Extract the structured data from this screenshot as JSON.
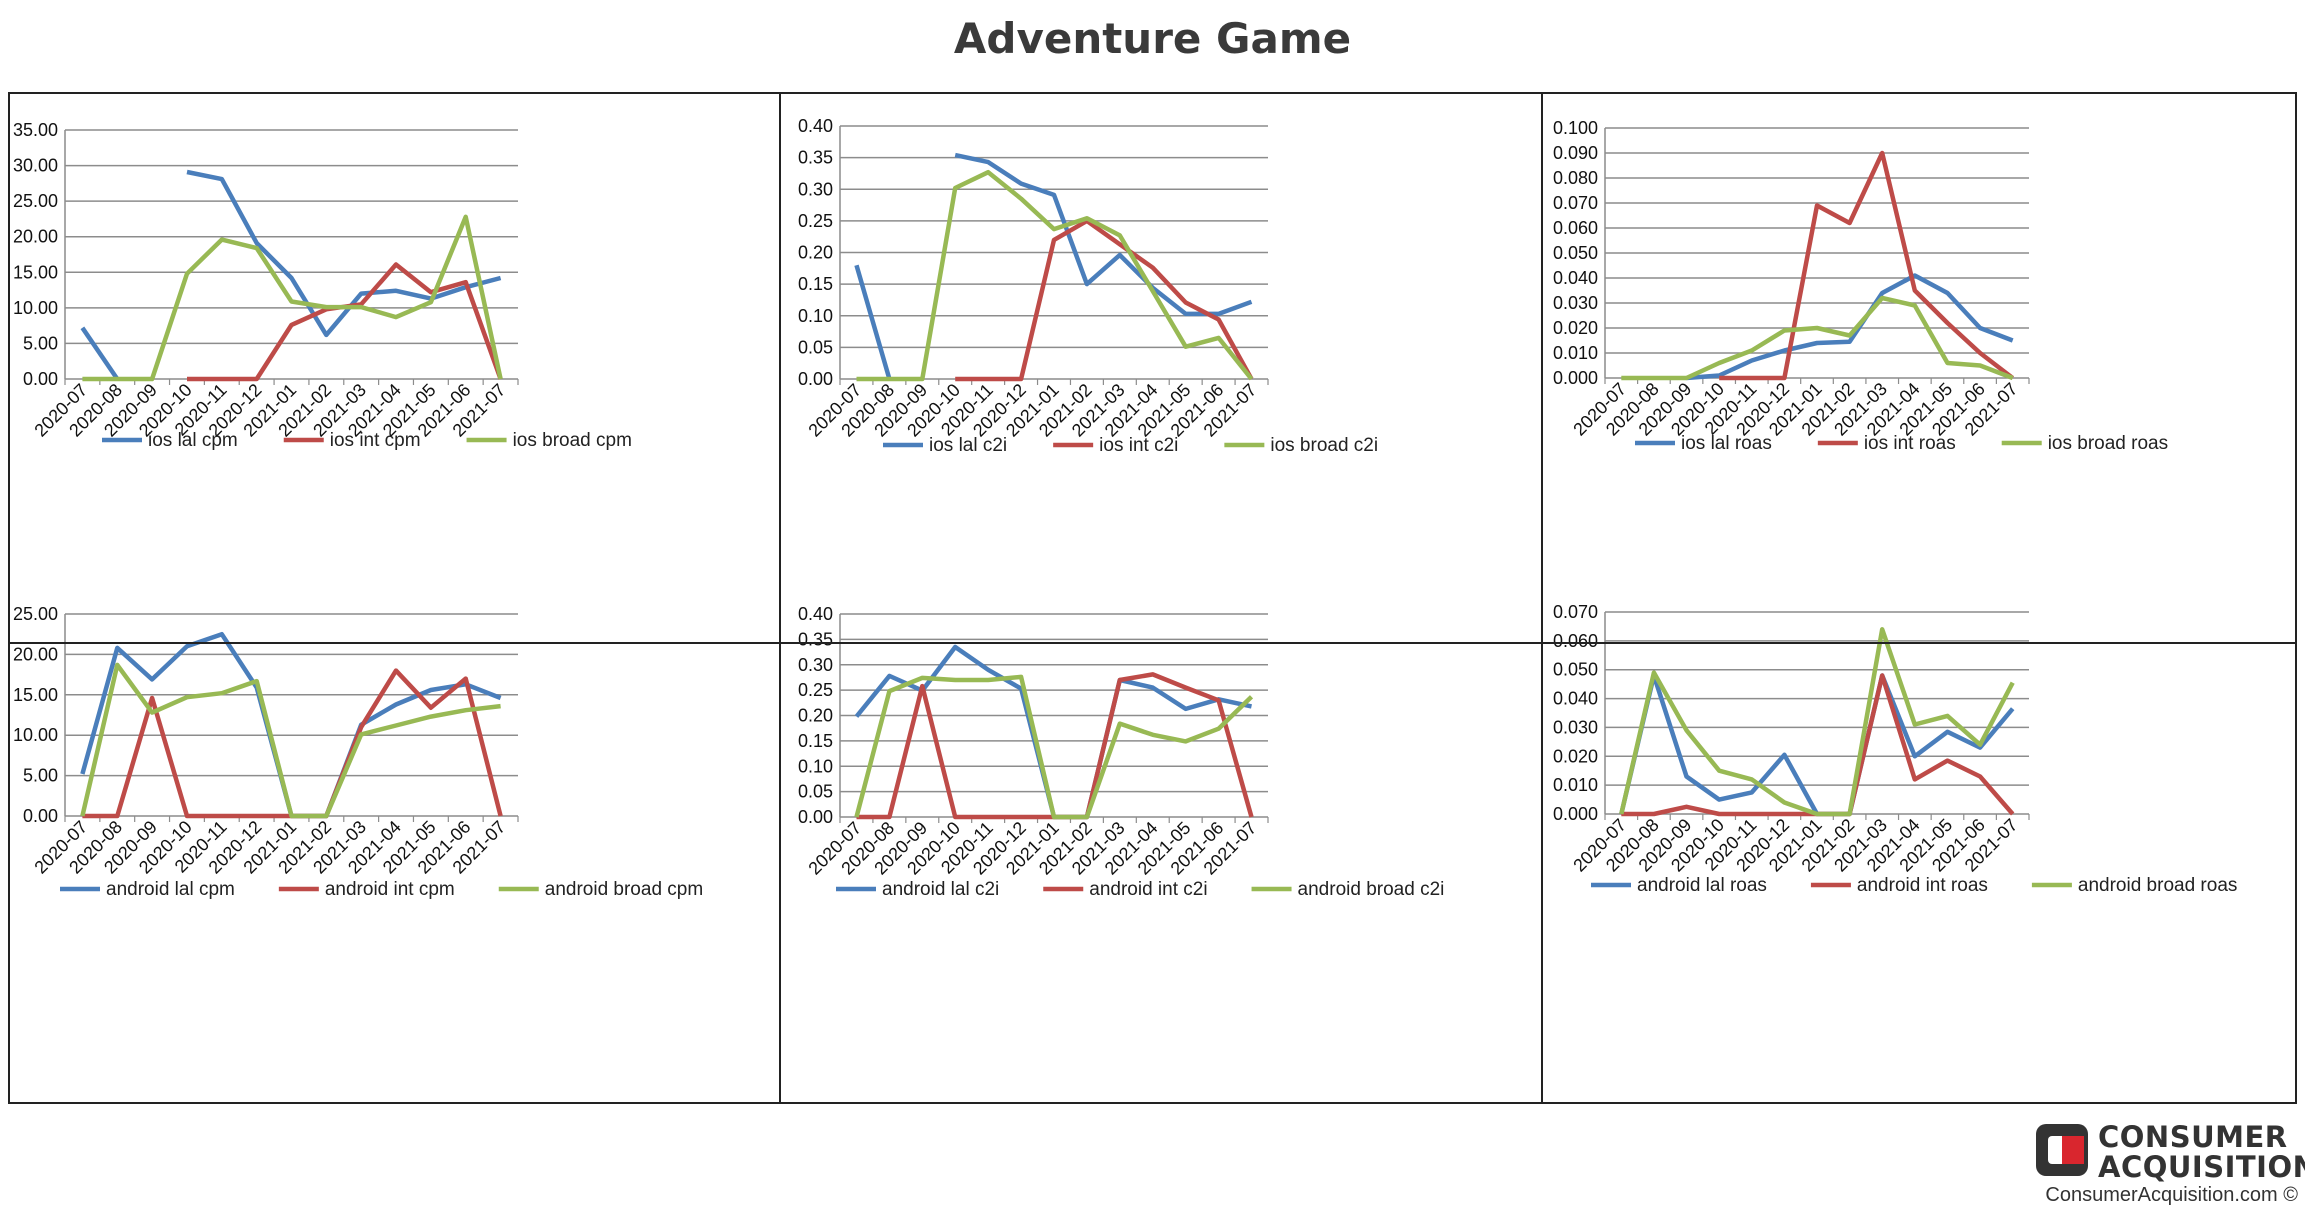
{
  "title": "Adventure Game",
  "brand": {
    "line1": "CONSUMER",
    "line2": "ACQUISITION",
    "url": "ConsumerAcquisition.com ©",
    "logo_icon": "consumer-acquisition-logo-icon",
    "logo_colors": [
      "#333333",
      "#d9262e"
    ]
  },
  "colors": {
    "blue": "#4a7ebb",
    "red": "#be4b48",
    "green": "#98b954"
  },
  "chart_data": [
    {
      "type": "line",
      "categories": [
        "2020-07",
        "2020-08",
        "2020-09",
        "2020-10",
        "2020-11",
        "2020-12",
        "2021-01",
        "2021-02",
        "2021-03",
        "2021-04",
        "2021-05",
        "2021-06",
        "2021-07"
      ],
      "ylim": [
        0,
        35
      ],
      "ytick_step": 5,
      "ytick_decimals": 2,
      "grid": true,
      "legend": "bottom",
      "series": [
        {
          "name": "ios lal cpm",
          "color": "#4a7ebb",
          "values": [
            7.2,
            0,
            null,
            29.1,
            28.1,
            19.1,
            14.2,
            6.2,
            12.0,
            12.4,
            11.3,
            12.9,
            14.2
          ]
        },
        {
          "name": "ios int cpm",
          "color": "#be4b48",
          "values": [
            null,
            null,
            null,
            0,
            0,
            0,
            7.6,
            9.8,
            10.5,
            16.1,
            12.2,
            13.6,
            0
          ]
        },
        {
          "name": "ios broad cpm",
          "color": "#98b954",
          "values": [
            0,
            0,
            0,
            14.8,
            19.6,
            18.4,
            10.9,
            10.1,
            10.1,
            8.7,
            10.8,
            22.8,
            0
          ]
        }
      ]
    },
    {
      "type": "line",
      "categories": [
        "2020-07",
        "2020-08",
        "2020-09",
        "2020-10",
        "2020-11",
        "2020-12",
        "2021-01",
        "2021-02",
        "2021-03",
        "2021-04",
        "2021-05",
        "2021-06",
        "2021-07"
      ],
      "ylim": [
        0,
        0.4
      ],
      "ytick_step": 0.05,
      "ytick_decimals": 2,
      "grid": true,
      "legend": "bottom",
      "series": [
        {
          "name": "ios lal c2i",
          "color": "#4a7ebb",
          "values": [
            0.18,
            0,
            null,
            0.354,
            0.343,
            0.309,
            0.291,
            0.15,
            0.196,
            0.144,
            0.103,
            0.103,
            0.122
          ]
        },
        {
          "name": "ios int c2i",
          "color": "#be4b48",
          "values": [
            null,
            null,
            null,
            0,
            0,
            0,
            0.22,
            0.25,
            0.213,
            0.176,
            0.121,
            0.094,
            0
          ]
        },
        {
          "name": "ios broad c2i",
          "color": "#98b954",
          "values": [
            0,
            0,
            0,
            0.302,
            0.327,
            0.285,
            0.237,
            0.254,
            0.227,
            0.139,
            0.051,
            0.065,
            0
          ]
        }
      ]
    },
    {
      "type": "line",
      "categories": [
        "2020-07",
        "2020-08",
        "2020-09",
        "2020-10",
        "2020-11",
        "2020-12",
        "2021-01",
        "2021-02",
        "2021-03",
        "2021-04",
        "2021-05",
        "2021-06",
        "2021-07"
      ],
      "ylim": [
        0,
        0.1
      ],
      "ytick_step": 0.01,
      "ytick_decimals": 3,
      "grid": true,
      "legend": "bottom",
      "series": [
        {
          "name": "ios lal roas",
          "color": "#4a7ebb",
          "values": [
            null,
            null,
            0,
            0.001,
            0.007,
            0.011,
            0.014,
            0.0145,
            0.034,
            0.041,
            0.034,
            0.02,
            0.015
          ]
        },
        {
          "name": "ios int roas",
          "color": "#be4b48",
          "values": [
            null,
            null,
            null,
            0,
            0,
            0,
            0.069,
            0.062,
            0.09,
            0.035,
            0.022,
            0.01,
            0
          ]
        },
        {
          "name": "ios broad roas",
          "color": "#98b954",
          "values": [
            0,
            0,
            0,
            0.006,
            0.011,
            0.019,
            0.02,
            0.017,
            0.032,
            0.029,
            0.006,
            0.005,
            0
          ]
        }
      ]
    },
    {
      "type": "line",
      "categories": [
        "2020-07",
        "2020-08",
        "2020-09",
        "2020-10",
        "2020-11",
        "2020-12",
        "2021-01",
        "2021-02",
        "2021-03",
        "2021-04",
        "2021-05",
        "2021-06",
        "2021-07"
      ],
      "ylim": [
        0,
        25
      ],
      "ytick_step": 5,
      "ytick_decimals": 2,
      "grid": true,
      "legend": "bottom",
      "series": [
        {
          "name": "android lal cpm",
          "color": "#4a7ebb",
          "values": [
            5.2,
            20.8,
            16.9,
            21.0,
            22.5,
            15.9,
            0,
            0,
            11.3,
            13.8,
            15.6,
            16.3,
            14.6
          ]
        },
        {
          "name": "android int cpm",
          "color": "#be4b48",
          "values": [
            0,
            0,
            14.6,
            0,
            0,
            0,
            0,
            0,
            11.0,
            18.0,
            13.4,
            17.0,
            0
          ]
        },
        {
          "name": "android broad cpm",
          "color": "#98b954",
          "values": [
            0,
            18.7,
            12.8,
            14.7,
            15.2,
            16.7,
            0,
            0,
            10.1,
            11.2,
            12.3,
            13.1,
            13.6
          ]
        }
      ]
    },
    {
      "type": "line",
      "categories": [
        "2020-07",
        "2020-08",
        "2020-09",
        "2020-10",
        "2020-11",
        "2020-12",
        "2021-01",
        "2021-02",
        "2021-03",
        "2021-04",
        "2021-05",
        "2021-06",
        "2021-07"
      ],
      "ylim": [
        0,
        0.4
      ],
      "ytick_step": 0.05,
      "ytick_decimals": 2,
      "grid": true,
      "legend": "bottom",
      "series": [
        {
          "name": "android lal c2i",
          "color": "#4a7ebb",
          "values": [
            0.198,
            0.278,
            0.249,
            0.335,
            0.29,
            0.253,
            0,
            0,
            0.27,
            0.255,
            0.213,
            0.232,
            0.218
          ]
        },
        {
          "name": "android int c2i",
          "color": "#be4b48",
          "values": [
            0,
            0,
            0.258,
            0,
            0,
            0,
            0,
            0,
            0.27,
            0.281,
            0.255,
            0.23,
            0
          ]
        },
        {
          "name": "android broad c2i",
          "color": "#98b954",
          "values": [
            0,
            0.248,
            0.274,
            0.27,
            0.27,
            0.276,
            0,
            0,
            0.184,
            0.162,
            0.149,
            0.174,
            0.237
          ]
        }
      ]
    },
    {
      "type": "line",
      "categories": [
        "2020-07",
        "2020-08",
        "2020-09",
        "2020-10",
        "2020-11",
        "2020-12",
        "2021-01",
        "2021-02",
        "2021-03",
        "2021-04",
        "2021-05",
        "2021-06",
        "2021-07"
      ],
      "ylim": [
        0,
        0.07
      ],
      "ytick_step": 0.01,
      "ytick_decimals": 3,
      "grid": true,
      "legend": "bottom",
      "series": [
        {
          "name": "android lal roas",
          "color": "#4a7ebb",
          "values": [
            0,
            0.048,
            0.013,
            0.005,
            0.0075,
            0.0205,
            0,
            0,
            0.048,
            0.02,
            0.0285,
            0.023,
            0.0365
          ]
        },
        {
          "name": "android int roas",
          "color": "#be4b48",
          "values": [
            0,
            0,
            0.0025,
            0,
            0,
            0,
            0,
            0,
            0.048,
            0.012,
            0.0185,
            0.013,
            0
          ]
        },
        {
          "name": "android broad roas",
          "color": "#98b954",
          "values": [
            0,
            0.049,
            0.029,
            0.015,
            0.012,
            0.004,
            0,
            0,
            0.064,
            0.031,
            0.034,
            0.024,
            0.0455
          ]
        }
      ]
    }
  ]
}
